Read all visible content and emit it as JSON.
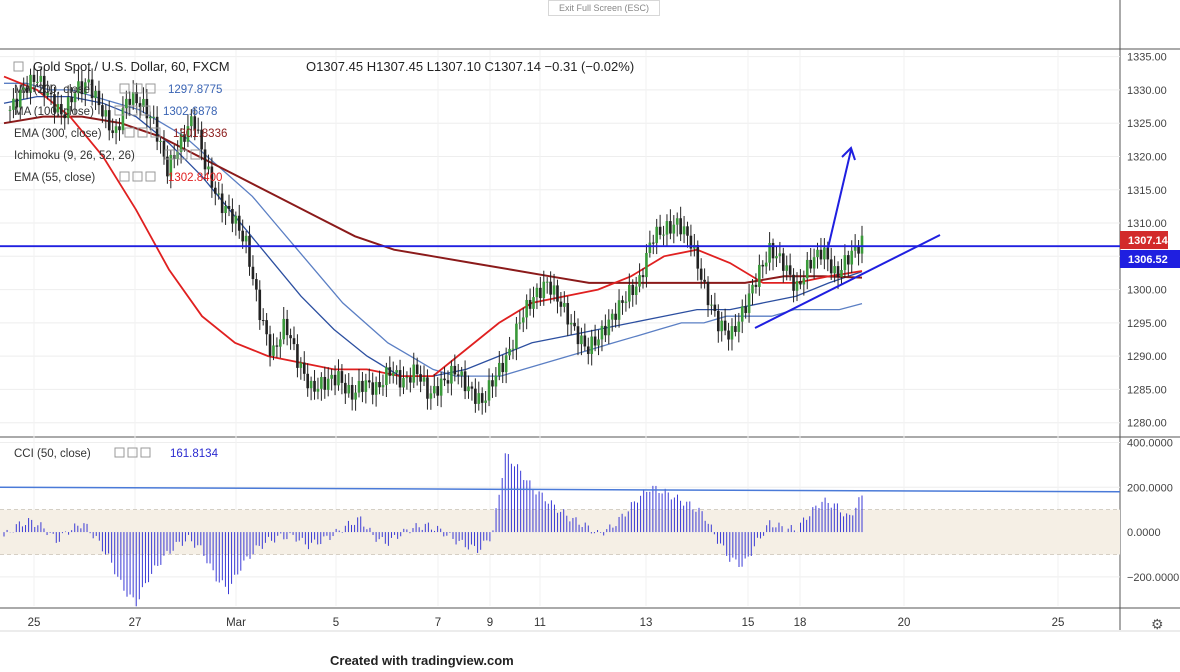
{
  "header": {
    "fullscreen_button": "Exit Full Screen (ESC)",
    "symbol": "Gold Spot / U.S. Dollar, 60, FXCM",
    "ohlc": "O1307.45  H1307.45  L1307.10  C1307.14  −0.31 (−0.02%)"
  },
  "indicators": [
    {
      "label": "MA (200, close)",
      "value": "1297.8775",
      "color": "#3a64b4"
    },
    {
      "label": "MA (100, close)",
      "value": "1302.6878",
      "color": "#3a64b4"
    },
    {
      "label": "EMA (300, close)",
      "value": "1301.8336",
      "color": "#8b1a1a"
    },
    {
      "label": "Ichimoku (9, 26, 52, 26)",
      "value": "",
      "color": "#3a64b4"
    },
    {
      "label": "EMA (55, close)",
      "value": "1302.8400",
      "color": "#e02020"
    }
  ],
  "oscillator": {
    "label": "CCI (50, close)",
    "value": "161.8134",
    "color": "#2a2ad0"
  },
  "price_axis": {
    "ticks": [
      "1335.00",
      "1330.00",
      "1325.00",
      "1320.00",
      "1315.00",
      "1310.00",
      "1305.00",
      "1300.00",
      "1295.00",
      "1290.00",
      "1285.00",
      "1280.00"
    ],
    "current_price": "1307.14",
    "level_price": "1306.52"
  },
  "cci_axis": {
    "ticks": [
      "400.0000",
      "200.0000",
      "0.0000",
      "−200.0000"
    ]
  },
  "time_axis": {
    "ticks": [
      "25",
      "27",
      "Mar",
      "5",
      "7",
      "9",
      "11",
      "13",
      "15",
      "18",
      "20",
      "25"
    ]
  },
  "credit": "Created with tradingview.com",
  "chart_data": {
    "type": "candlestick",
    "symbol": "Gold Spot / U.S. Dollar",
    "timeframe": "60",
    "ylim": [
      1278,
      1336
    ],
    "cci_ylim": [
      -330,
      420
    ],
    "closes": [
      1327,
      1330,
      1332,
      1329,
      1326,
      1330,
      1331,
      1327,
      1323,
      1329,
      1328,
      1325,
      1318,
      1322,
      1326,
      1318,
      1313,
      1311,
      1307,
      1297,
      1290,
      1295,
      1289,
      1285,
      1286,
      1287,
      1284,
      1286,
      1285,
      1288,
      1286,
      1288,
      1284,
      1286,
      1288,
      1285,
      1283,
      1287,
      1290,
      1296,
      1299,
      1301,
      1298,
      1294,
      1291,
      1293,
      1296,
      1299,
      1301,
      1308,
      1309,
      1310,
      1307,
      1300,
      1295,
      1293,
      1297,
      1302,
      1306,
      1304,
      1300,
      1304,
      1306,
      1302,
      1305,
      1307.14
    ],
    "ma200": [
      1331,
      1331,
      1330,
      1330,
      1329,
      1328,
      1327,
      1325,
      1323,
      1320,
      1317,
      1314,
      1310,
      1306,
      1302,
      1298,
      1295,
      1292,
      1290,
      1288,
      1287,
      1287,
      1287,
      1288,
      1289,
      1290,
      1291,
      1292,
      1293,
      1294,
      1295,
      1295,
      1296,
      1296,
      1296,
      1297,
      1297,
      1297,
      1297.9
    ],
    "ma100": [
      1328,
      1329,
      1329,
      1328,
      1326,
      1322,
      1317,
      1311,
      1305,
      1299,
      1294,
      1290,
      1287,
      1287,
      1288,
      1290,
      1292,
      1293,
      1294,
      1295,
      1296,
      1297,
      1297,
      1298,
      1299,
      1301,
      1302.7
    ],
    "ema300": [
      1325,
      1326,
      1326,
      1325,
      1323,
      1320,
      1317,
      1314,
      1311,
      1308,
      1306,
      1305,
      1304,
      1303,
      1302,
      1301,
      1301,
      1301,
      1301,
      1301,
      1302,
      1302,
      1301.8
    ],
    "ema55": [
      1332,
      1330,
      1326,
      1320,
      1312,
      1303,
      1296,
      1292,
      1290,
      1289,
      1288,
      1288,
      1287,
      1287,
      1291,
      1295,
      1298,
      1299,
      1300,
      1302,
      1305,
      1306,
      1304,
      1301,
      1301,
      1302,
      1302.8
    ],
    "cci": [
      -20,
      30,
      50,
      20,
      -40,
      10,
      40,
      -30,
      -120,
      -250,
      -320,
      -200,
      -120,
      -60,
      -30,
      -80,
      -200,
      -260,
      -150,
      -80,
      -40,
      -20,
      -20,
      -60,
      -40,
      -10,
      30,
      60,
      -20,
      -50,
      -10,
      20,
      30,
      10,
      -30,
      -60,
      -80,
      -10,
      350,
      280,
      200,
      150,
      100,
      60,
      30,
      -10,
      20,
      80,
      150,
      200,
      180,
      150,
      120,
      80,
      -30,
      -120,
      -150,
      -50,
      40,
      20,
      10,
      80,
      140,
      120,
      60,
      161.8
    ],
    "horizontal_level": 1306.52,
    "cci_trendline": [
      200,
      180
    ]
  }
}
